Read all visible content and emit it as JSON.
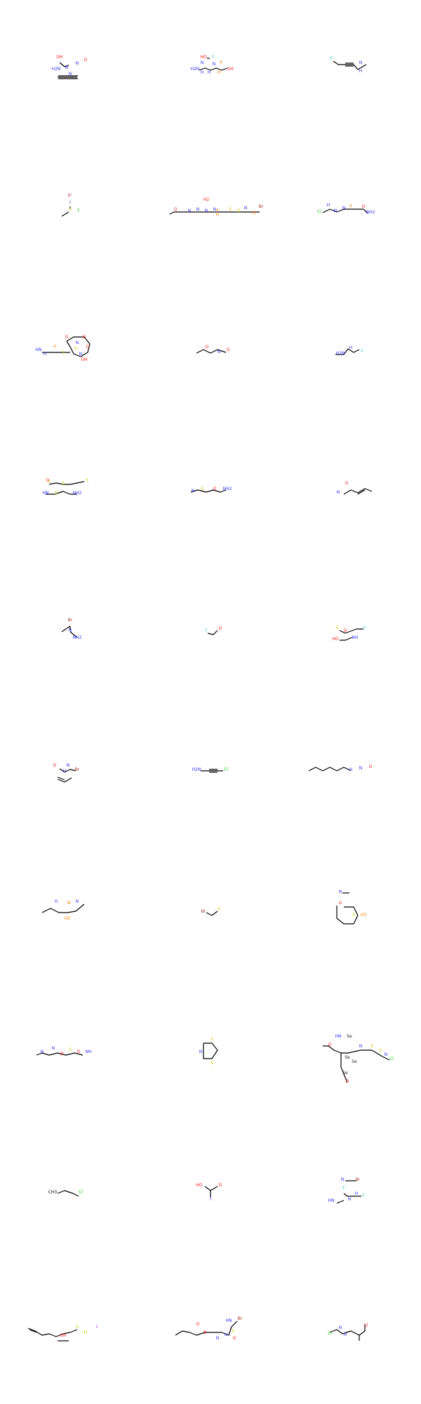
{
  "colors": {
    "C": "#000000",
    "N": "#3333ff",
    "O": "#ff1a1a",
    "S": "#cccc00",
    "P": "#ff8000",
    "F": "#33cccc",
    "Cl": "#19cc19",
    "Br": "#a52a2a",
    "I": "#9400d3",
    "Se": "#222222"
  },
  "molecules": [
    {
      "atoms": [
        [
          "OH",
          "O"
        ],
        [
          "H2N",
          "N"
        ],
        [
          "N",
          "N"
        ],
        [
          "N",
          "N"
        ],
        [
          "O",
          "O"
        ],
        [
          "N",
          "N"
        ]
      ]
    },
    {
      "atoms": [
        [
          "HO",
          "O"
        ],
        [
          "F",
          "F"
        ],
        [
          "H2N",
          "N"
        ],
        [
          "H",
          "N"
        ],
        [
          "N",
          "N"
        ],
        [
          "H",
          "N"
        ],
        [
          "H",
          "P"
        ],
        [
          "P",
          "P"
        ],
        [
          "OH",
          "O"
        ],
        [
          "N",
          "N"
        ]
      ]
    },
    {
      "atoms": [
        [
          "F",
          "F"
        ],
        [
          "H",
          "N"
        ],
        [
          "N",
          "N"
        ]
      ]
    },
    {
      "atoms": [
        [
          "S⁺",
          "Br"
        ],
        [
          "I",
          "I"
        ],
        [
          "S",
          "S"
        ],
        [
          "F",
          "Cl"
        ]
      ]
    },
    {
      "atoms": [
        [
          "O",
          "O"
        ],
        [
          "N",
          "N"
        ],
        [
          "N",
          "N"
        ],
        [
          "N",
          "N"
        ],
        [
          "N",
          "N"
        ],
        [
          "H2",
          "O"
        ],
        [
          "P",
          "P"
        ],
        [
          "H",
          "P"
        ],
        [
          "S",
          "S"
        ],
        [
          "S",
          "S"
        ],
        [
          "N",
          "N"
        ],
        [
          "H",
          "P"
        ],
        [
          "Br",
          "Br"
        ]
      ]
    },
    {
      "atoms": [
        [
          "Cl",
          "Cl"
        ],
        [
          "H",
          "N"
        ],
        [
          "N",
          "N"
        ],
        [
          "N",
          "N"
        ],
        [
          "P",
          "P"
        ],
        [
          "O",
          "O"
        ],
        [
          "NH2",
          "N"
        ]
      ]
    },
    {
      "atoms": [
        [
          "HN",
          "N"
        ],
        [
          "H",
          "N"
        ],
        [
          "P",
          "P"
        ],
        [
          "S",
          "S"
        ],
        [
          "S",
          "S"
        ],
        [
          "O",
          "O"
        ],
        [
          "O",
          "O"
        ],
        [
          "O",
          "O"
        ],
        [
          "N",
          "N"
        ],
        [
          "OH",
          "O"
        ],
        [
          "N",
          "N"
        ]
      ]
    },
    {
      "atoms": [
        [
          "O",
          "O"
        ],
        [
          "N",
          "N"
        ],
        [
          "O",
          "O"
        ]
      ]
    },
    {
      "atoms": [
        [
          "H2N",
          "N"
        ],
        [
          "H",
          "N"
        ],
        [
          "F",
          "F"
        ]
      ]
    },
    {
      "atoms": [
        [
          "S",
          "S"
        ],
        [
          "S",
          "S"
        ],
        [
          "O",
          "O"
        ],
        [
          "HN",
          "N"
        ],
        [
          "S",
          "S"
        ],
        [
          "NH2",
          "N"
        ],
        [
          "S",
          "S"
        ]
      ]
    },
    {
      "atoms": [
        [
          "N",
          "N"
        ],
        [
          "S",
          "S"
        ],
        [
          "O",
          "O"
        ],
        [
          "NH2",
          "N"
        ]
      ]
    },
    {
      "atoms": [
        [
          "O",
          "O"
        ],
        [
          "N",
          "N"
        ]
      ]
    },
    {
      "atoms": [
        [
          "Br",
          "Br"
        ],
        [
          "N",
          "N"
        ],
        [
          "NH2",
          "N"
        ]
      ]
    },
    {
      "atoms": [
        [
          "F",
          "F"
        ],
        [
          "O",
          "O"
        ]
      ]
    },
    {
      "atoms": [
        [
          "S",
          "S"
        ],
        [
          "O",
          "O"
        ],
        [
          "F",
          "F"
        ],
        [
          "HO",
          "O"
        ],
        [
          "NH",
          "N"
        ]
      ]
    },
    {
      "atoms": [
        [
          "O",
          "O"
        ],
        [
          "H",
          "N"
        ],
        [
          "N",
          "N"
        ],
        [
          "Br",
          "Br"
        ]
      ]
    },
    {
      "atoms": [
        [
          "H2N",
          "N"
        ],
        [
          "Cl",
          "Cl"
        ]
      ]
    },
    {
      "atoms": [
        [
          "H",
          "N"
        ],
        [
          "N",
          "N"
        ],
        [
          "O",
          "O"
        ]
      ]
    },
    {
      "atoms": [
        [
          "H",
          "N"
        ],
        [
          "N",
          "P"
        ],
        [
          "H2",
          "P"
        ],
        [
          "N",
          "N"
        ]
      ]
    },
    {
      "atoms": [
        [
          "Br",
          "Br"
        ],
        [
          "S",
          "S"
        ]
      ]
    },
    {
      "atoms": [
        [
          "N",
          "N"
        ],
        [
          "O",
          "O"
        ],
        [
          "S",
          "S"
        ],
        [
          "H3",
          "P"
        ]
      ]
    },
    {
      "atoms": [
        [
          "N",
          "N"
        ],
        [
          "N",
          "N"
        ],
        [
          "O",
          "O"
        ],
        [
          "S",
          "S"
        ],
        [
          "O",
          "O"
        ],
        [
          "NH",
          "N"
        ]
      ]
    },
    {
      "atoms": [
        [
          "S",
          "S"
        ],
        [
          "N",
          "N"
        ],
        [
          "S",
          "S"
        ]
      ]
    },
    {
      "atoms": [
        [
          "HN",
          "N"
        ],
        [
          "Se",
          "Se"
        ],
        [
          "O",
          "O"
        ],
        [
          "N",
          "N"
        ],
        [
          "S",
          "S"
        ],
        [
          "Se",
          "Se"
        ],
        [
          "Se",
          "Se"
        ],
        [
          "S",
          "S"
        ],
        [
          "Se",
          "Se"
        ],
        [
          "N",
          "N"
        ],
        [
          "Cl",
          "Cl"
        ],
        [
          "O",
          "O"
        ]
      ]
    },
    {
      "atoms": [
        [
          "CH3",
          "C"
        ],
        [
          "Cl",
          "Cl"
        ]
      ]
    },
    {
      "atoms": [
        [
          "HO",
          "O"
        ],
        [
          "O",
          "O"
        ],
        [
          "I",
          "I"
        ]
      ]
    },
    {
      "atoms": [
        [
          "N",
          "N"
        ],
        [
          "Br",
          "Br"
        ],
        [
          "F",
          "F"
        ],
        [
          "H",
          "N"
        ],
        [
          "HN",
          "N"
        ],
        [
          "N",
          "N"
        ],
        [
          "F",
          "F"
        ]
      ]
    },
    {
      "atoms": [
        [
          "S",
          "S"
        ],
        [
          "I",
          "I"
        ],
        [
          "H",
          "S"
        ],
        [
          "OH",
          "O"
        ]
      ]
    },
    {
      "atoms": [
        [
          "O",
          "O"
        ],
        [
          "O",
          "O"
        ],
        [
          "N",
          "N"
        ],
        [
          "N",
          "N"
        ],
        [
          "S",
          "S"
        ],
        [
          "O",
          "O"
        ],
        [
          "HN",
          "N"
        ],
        [
          "Br",
          "Br"
        ]
      ]
    },
    {
      "atoms": [
        [
          "Cl",
          "Cl"
        ],
        [
          "N",
          "N"
        ],
        [
          "H",
          "N"
        ],
        [
          "O",
          "O"
        ]
      ]
    }
  ]
}
